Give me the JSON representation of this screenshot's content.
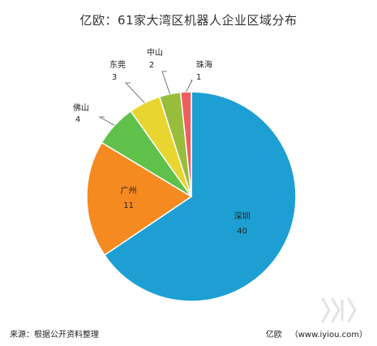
{
  "chart_data": {
    "type": "pie",
    "title": "亿欧：61家大湾区机器人企业区域分布",
    "categories": [
      "深圳",
      "广州",
      "佛山",
      "东莞",
      "中山",
      "珠海"
    ],
    "values": [
      40,
      11,
      4,
      3,
      2,
      1
    ],
    "colors": [
      "#1e9fd4",
      "#f58a21",
      "#5fc04a",
      "#e8d530",
      "#98bc3c",
      "#ec5f5f"
    ],
    "legend": "none"
  },
  "footer": {
    "source": "来源：根据公开资料整理",
    "brand": "亿欧",
    "url": "（www.iyiou.com）"
  }
}
